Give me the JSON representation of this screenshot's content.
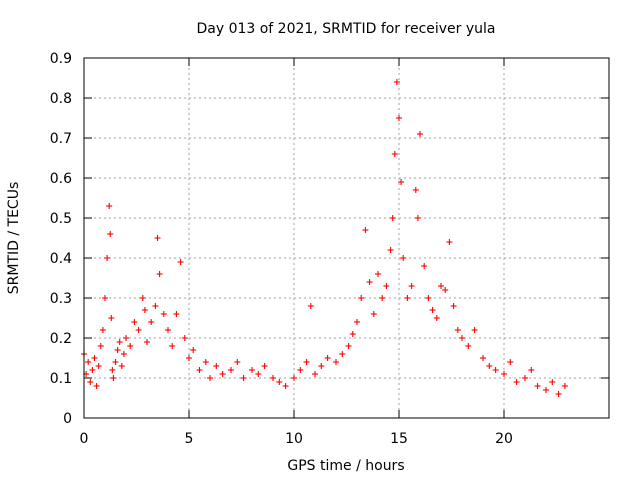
{
  "chart_data": {
    "type": "scatter",
    "title": "Day 013 of 2021, SRMTID for receiver yula",
    "xlabel": "GPS time / hours",
    "ylabel": "SRMTID / TECUs",
    "xlim": [
      0,
      25
    ],
    "ylim": [
      0,
      0.9
    ],
    "xticks": [
      0,
      5,
      10,
      15,
      20
    ],
    "xtick_labels": [
      "0",
      "5",
      "10",
      "15",
      "20"
    ],
    "yticks": [
      0,
      0.1,
      0.2,
      0.3,
      0.4,
      0.5,
      0.6,
      0.7,
      0.8,
      0.9
    ],
    "ytick_labels": [
      "0",
      "0.1",
      "0.2",
      "0.3",
      "0.4",
      "0.5",
      "0.6",
      "0.7",
      "0.8",
      "0.9"
    ],
    "grid": true,
    "marker": "+",
    "color": "#ff0000",
    "series": [
      {
        "name": "SRMTID",
        "x": [
          0.0,
          0.1,
          0.2,
          0.3,
          0.4,
          0.5,
          0.6,
          0.7,
          0.8,
          0.9,
          1.0,
          1.1,
          1.2,
          1.25,
          1.3,
          1.35,
          1.4,
          1.5,
          1.6,
          1.7,
          1.8,
          1.9,
          2.0,
          2.2,
          2.4,
          2.6,
          2.8,
          2.9,
          3.0,
          3.2,
          3.4,
          3.5,
          3.6,
          3.8,
          4.0,
          4.2,
          4.4,
          4.6,
          4.8,
          5.0,
          5.2,
          5.5,
          5.8,
          6.0,
          6.3,
          6.6,
          7.0,
          7.3,
          7.6,
          8.0,
          8.3,
          8.6,
          9.0,
          9.3,
          9.6,
          10.0,
          10.3,
          10.6,
          10.8,
          11.0,
          11.3,
          11.6,
          12.0,
          12.3,
          12.6,
          12.8,
          13.0,
          13.2,
          13.4,
          13.6,
          13.8,
          14.0,
          14.2,
          14.4,
          14.6,
          14.7,
          14.8,
          14.9,
          15.0,
          15.1,
          15.2,
          15.4,
          15.6,
          15.8,
          15.9,
          16.0,
          16.2,
          16.4,
          16.6,
          16.8,
          17.0,
          17.2,
          17.4,
          17.6,
          17.8,
          18.0,
          18.3,
          18.6,
          19.0,
          19.3,
          19.6,
          20.0,
          20.3,
          20.6,
          21.0,
          21.3,
          21.6,
          22.0,
          22.3,
          22.6,
          22.9
        ],
        "y": [
          0.16,
          0.11,
          0.14,
          0.09,
          0.12,
          0.15,
          0.08,
          0.13,
          0.18,
          0.22,
          0.3,
          0.4,
          0.53,
          0.46,
          0.25,
          0.12,
          0.1,
          0.14,
          0.17,
          0.19,
          0.13,
          0.16,
          0.2,
          0.18,
          0.24,
          0.22,
          0.3,
          0.27,
          0.19,
          0.24,
          0.28,
          0.45,
          0.36,
          0.26,
          0.22,
          0.18,
          0.26,
          0.39,
          0.2,
          0.15,
          0.17,
          0.12,
          0.14,
          0.1,
          0.13,
          0.11,
          0.12,
          0.14,
          0.1,
          0.12,
          0.11,
          0.13,
          0.1,
          0.09,
          0.08,
          0.1,
          0.12,
          0.14,
          0.28,
          0.11,
          0.13,
          0.15,
          0.14,
          0.16,
          0.18,
          0.21,
          0.24,
          0.3,
          0.47,
          0.34,
          0.26,
          0.36,
          0.3,
          0.33,
          0.42,
          0.5,
          0.66,
          0.84,
          0.75,
          0.59,
          0.4,
          0.3,
          0.33,
          0.57,
          0.5,
          0.71,
          0.38,
          0.3,
          0.27,
          0.25,
          0.33,
          0.32,
          0.44,
          0.28,
          0.22,
          0.2,
          0.18,
          0.22,
          0.15,
          0.13,
          0.12,
          0.11,
          0.14,
          0.09,
          0.1,
          0.12,
          0.08,
          0.07,
          0.09,
          0.06,
          0.08
        ]
      }
    ]
  }
}
